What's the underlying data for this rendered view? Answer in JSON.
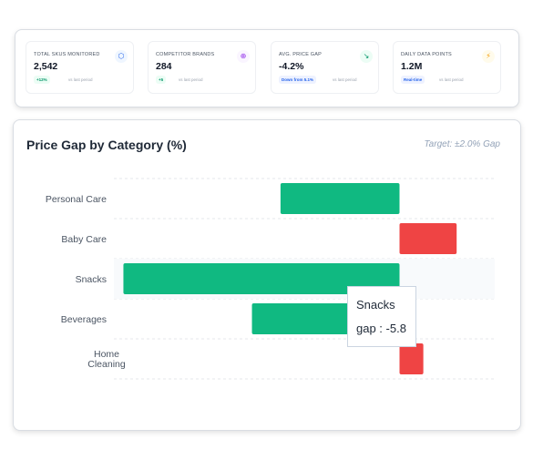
{
  "kpis": [
    {
      "label": "Total SKUs Monitored",
      "value": "2,542",
      "badge": "+12%",
      "badge_style": "green",
      "note": "vs last period",
      "icon": "cube-icon",
      "icon_color": "#2563eb",
      "icon_bg": "#eff6ff",
      "icon_glyph": "⬡"
    },
    {
      "label": "Competitor Brands",
      "value": "284",
      "badge": "+5",
      "badge_style": "green",
      "note": "vs last period",
      "icon": "globe-icon",
      "icon_color": "#9333ea",
      "icon_bg": "#faf5ff",
      "icon_glyph": "⊕"
    },
    {
      "label": "Avg. Price Gap",
      "value": "-4.2%",
      "badge": "Down from 5.1%",
      "badge_style": "blue",
      "note": "vs last period",
      "icon": "trend-down-icon",
      "icon_color": "#059669",
      "icon_bg": "#ecfdf5",
      "icon_glyph": "↘"
    },
    {
      "label": "Daily Data Points",
      "value": "1.2M",
      "badge": "Real-time",
      "badge_style": "blue",
      "note": "vs last period",
      "icon": "lightning-icon",
      "icon_color": "#f59e0b",
      "icon_bg": "#fffbeb",
      "icon_glyph": "⚡"
    }
  ],
  "chart_title": "Price Gap by Category (%)",
  "chart_target": "Target: ±2.0% Gap",
  "tooltip": {
    "category": "Snacks",
    "label": "gap : -5.8"
  },
  "colors": {
    "negative": "#10b981",
    "positive": "#ef4444",
    "hover": "#f8fafc"
  },
  "chart_data": {
    "type": "bar",
    "orientation": "horizontal",
    "categories": [
      "Personal Care",
      "Baby Care",
      "Snacks",
      "Beverages",
      "Home Cleaning"
    ],
    "series": [
      {
        "name": "gap",
        "values": [
          -2.5,
          1.2,
          -5.8,
          -3.1,
          0.5
        ]
      }
    ],
    "xlim": [
      -6,
      2
    ],
    "title": "Price Gap by Category (%)",
    "grid": true,
    "highlighted": "Snacks"
  }
}
